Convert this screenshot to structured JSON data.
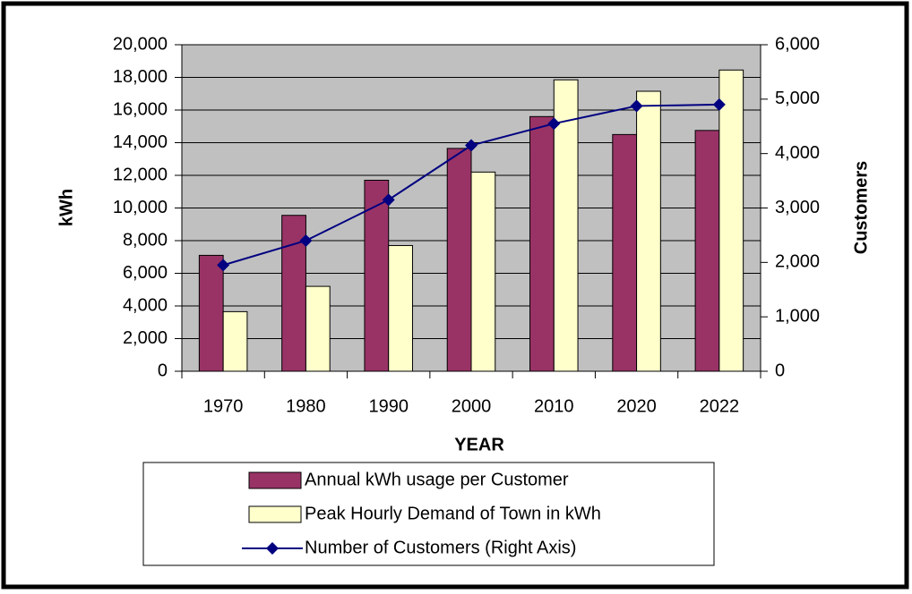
{
  "chart_data": {
    "type": "bar",
    "categories": [
      "1970",
      "1980",
      "1990",
      "2000",
      "2010",
      "2020",
      "2022"
    ],
    "series": [
      {
        "name": "Annual kWh usage per Customer",
        "color": "#993366",
        "values": [
          7100,
          9550,
          11700,
          13650,
          15600,
          14500,
          14750
        ]
      },
      {
        "name": "Peak Hourly Demand of Town in kWh",
        "color": "#ffffcc",
        "values": [
          3650,
          5200,
          7700,
          12200,
          17850,
          17150,
          18450
        ]
      },
      {
        "name": "Number of Customers (Right Axis)",
        "color": "#000080",
        "type": "line",
        "axis": "y2",
        "values": [
          1950,
          2400,
          3150,
          4150,
          4550,
          4875,
          4900
        ]
      }
    ],
    "xlabel": "YEAR",
    "ylabel": "kWh",
    "y2label": "Customers",
    "ylim": [
      0,
      20000
    ],
    "yticks": [
      0,
      {
        "value": 2000,
        "label": "2,000"
      },
      {
        "value": 4000,
        "label": "4,000"
      },
      {
        "value": 6000,
        "label": "6,000"
      },
      {
        "value": 8000,
        "label": "8,000"
      },
      {
        "value": 10000,
        "label": "10,000"
      },
      {
        "value": 12000,
        "label": "12,000"
      },
      {
        "value": 14000,
        "label": "14,000"
      },
      {
        "value": 16000,
        "label": "16,000"
      },
      {
        "value": 18000,
        "label": "18,000"
      },
      {
        "value": 20000,
        "label": "20,000"
      }
    ],
    "y2lim": [
      0,
      6000
    ],
    "y2ticks": [
      0,
      {
        "value": 1000,
        "label": "1,000"
      },
      {
        "value": 2000,
        "label": "2,000"
      },
      {
        "value": 3000,
        "label": "3,000"
      },
      {
        "value": 4000,
        "label": "4,000"
      },
      {
        "value": 5000,
        "label": "5,000"
      },
      {
        "value": 6000,
        "label": "6,000"
      }
    ],
    "grid": true,
    "legend": "bottom"
  }
}
